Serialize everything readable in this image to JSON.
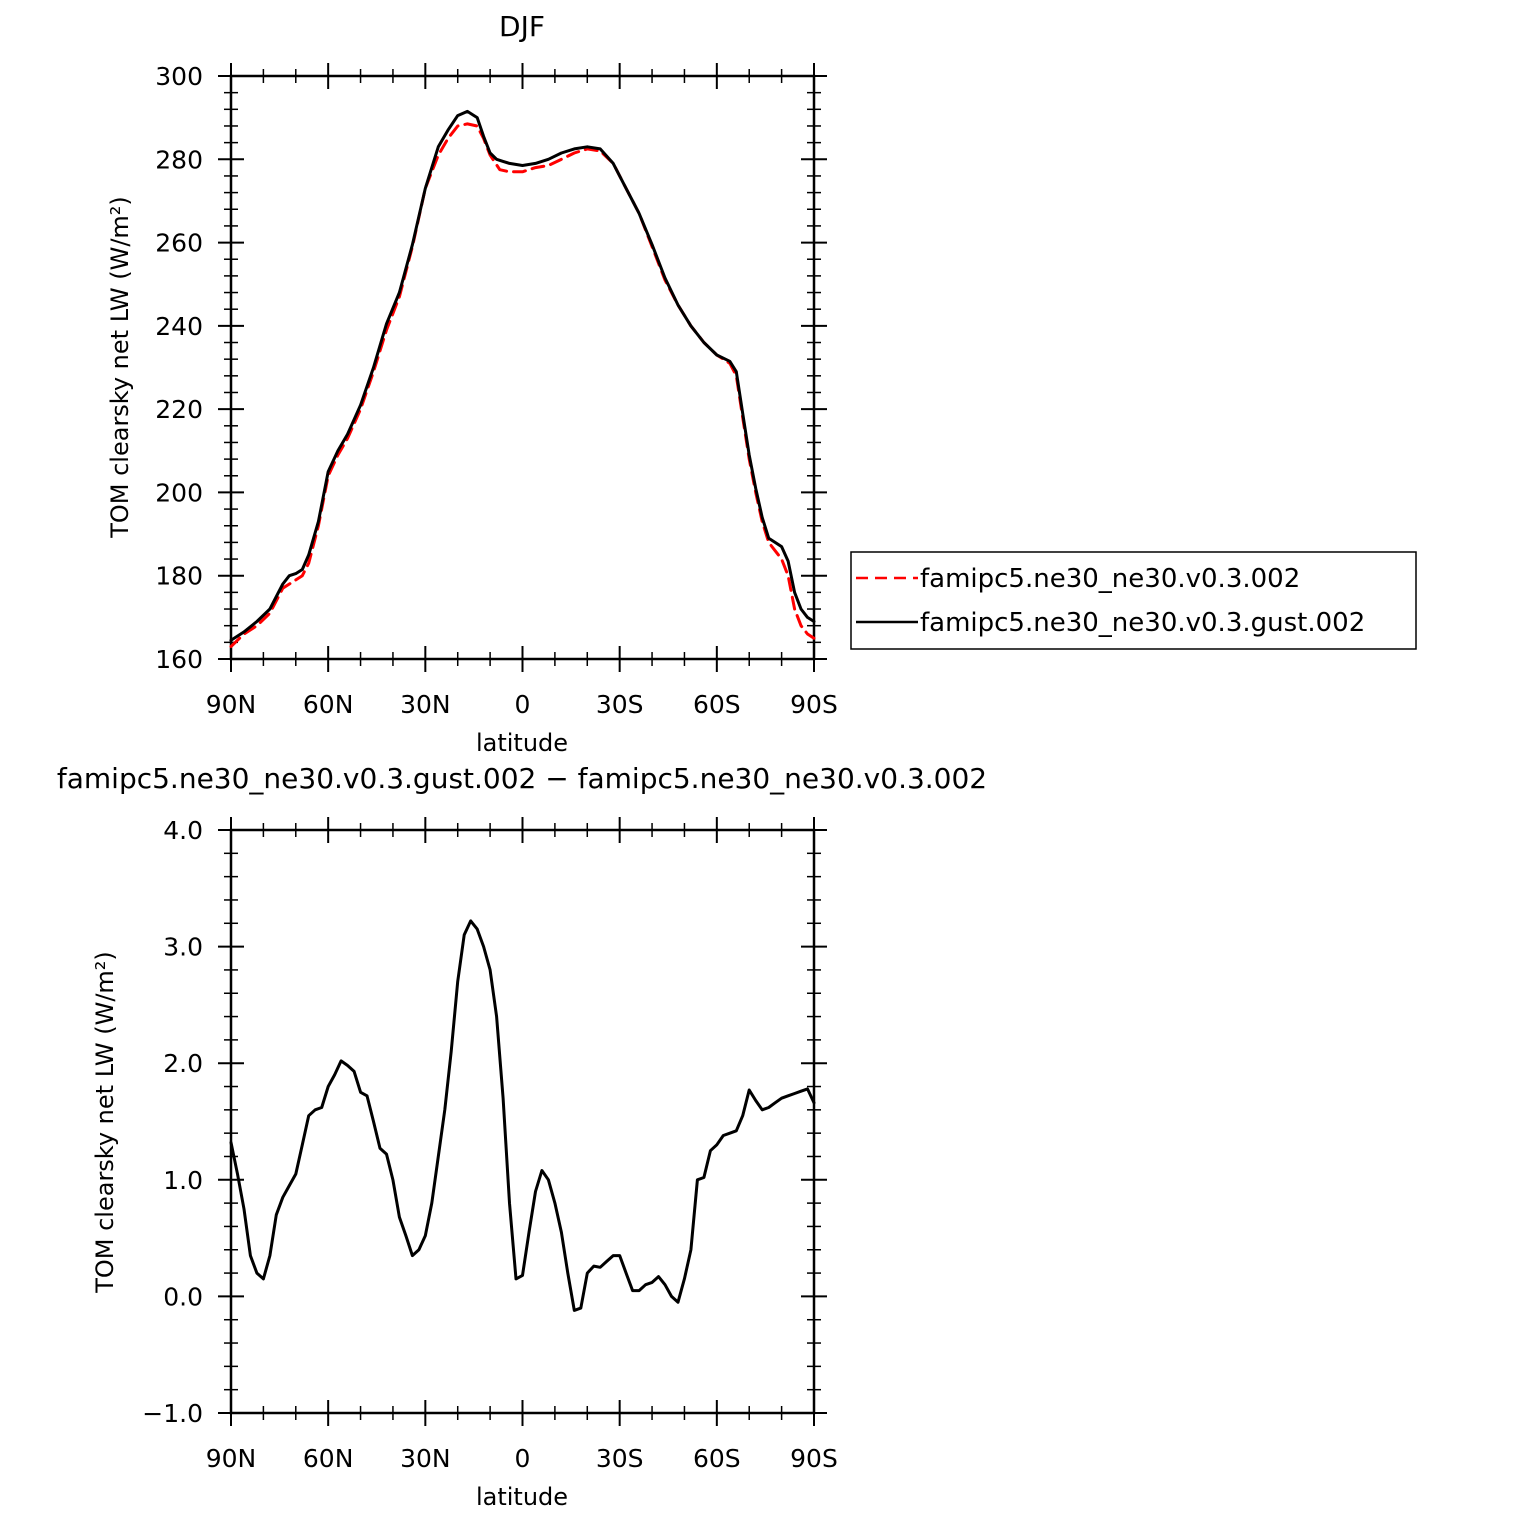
{
  "chart_data": [
    {
      "type": "line",
      "title": "DJF",
      "xlabel": "latitude",
      "ylabel": "TOM clearsky net LW (W/m²)",
      "x_tick_labels": [
        "90N",
        "60N",
        "30N",
        "0",
        "30S",
        "60S",
        "90S"
      ],
      "x_ticks": [
        -90,
        -60,
        -30,
        0,
        30,
        60,
        90
      ],
      "xlim": [
        -90,
        90
      ],
      "y_tick_labels": [
        "160",
        "180",
        "200",
        "220",
        "240",
        "260",
        "280",
        "300"
      ],
      "y_ticks": [
        160,
        180,
        200,
        220,
        240,
        260,
        280,
        300
      ],
      "ylim": [
        160,
        300
      ],
      "legend_position": "right",
      "series": [
        {
          "name": "famipc5.ne30_ne30.v0.3.002",
          "color": "#ff0000",
          "style": "dashed",
          "x": [
            -90,
            -86,
            -82,
            -78,
            -74,
            -70,
            -68,
            -66,
            -63,
            -60,
            -57,
            -54,
            -50,
            -46,
            -42,
            -38,
            -34,
            -30,
            -28,
            -26,
            -23,
            -20,
            -17,
            -14,
            -12,
            -10,
            -7,
            -4,
            0,
            4,
            8,
            12,
            16,
            20,
            24,
            28,
            32,
            36,
            40,
            44,
            48,
            52,
            56,
            60,
            64,
            66,
            68,
            70,
            72,
            74,
            76,
            78,
            80,
            82,
            84,
            86,
            88,
            90
          ],
          "y": [
            163,
            166,
            168,
            171,
            177,
            179,
            180,
            183,
            192,
            204,
            209,
            213,
            220,
            229,
            239,
            247,
            259,
            273,
            277,
            281,
            285,
            288,
            288.5,
            288,
            285,
            281,
            277.5,
            277,
            277,
            278,
            278.5,
            280,
            281.5,
            282.5,
            282,
            279,
            273,
            267,
            259,
            251,
            245,
            240,
            236,
            233,
            231,
            228,
            218,
            208,
            200,
            193,
            188,
            186,
            184,
            180,
            172,
            168,
            166,
            165
          ]
        },
        {
          "name": "famipc5.ne30_ne30.v0.3.gust.002",
          "color": "#000000",
          "style": "solid",
          "x": [
            -90,
            -86,
            -82,
            -78,
            -74,
            -72,
            -70,
            -68,
            -66,
            -63,
            -60,
            -57,
            -54,
            -50,
            -46,
            -42,
            -38,
            -34,
            -30,
            -28,
            -26,
            -23,
            -20,
            -17,
            -14,
            -12,
            -10,
            -8,
            -6,
            -4,
            0,
            4,
            8,
            12,
            16,
            20,
            24,
            28,
            32,
            36,
            40,
            44,
            48,
            52,
            56,
            60,
            64,
            66,
            68,
            70,
            72,
            74,
            76,
            78,
            80,
            82,
            84,
            86,
            88,
            90
          ],
          "y": [
            164.5,
            166.5,
            169,
            172,
            178,
            180,
            180.5,
            181.5,
            185,
            193,
            205,
            210,
            214,
            221,
            230,
            240.5,
            248,
            259.5,
            273,
            278,
            283,
            287,
            290.5,
            291.5,
            290,
            285.5,
            281.5,
            280,
            279.5,
            279,
            278.5,
            279,
            280,
            281.5,
            282.5,
            283,
            282.5,
            279,
            273,
            267,
            259.5,
            251.5,
            245,
            240,
            236,
            233,
            231.5,
            229,
            219,
            209,
            201,
            194,
            189,
            188,
            187,
            183.5,
            176,
            172,
            170,
            169
          ]
        }
      ]
    },
    {
      "type": "line",
      "title": "famipc5.ne30_ne30.v0.3.gust.002 − famipc5.ne30_ne30.v0.3.002",
      "xlabel": "latitude",
      "ylabel": "TOM clearsky net LW (W/m²)",
      "x_tick_labels": [
        "90N",
        "60N",
        "30N",
        "0",
        "30S",
        "60S",
        "90S"
      ],
      "x_ticks": [
        -90,
        -60,
        -30,
        0,
        30,
        60,
        90
      ],
      "xlim": [
        -90,
        90
      ],
      "y_tick_labels": [
        "−1.0",
        "0.0",
        "1.0",
        "2.0",
        "3.0",
        "4.0"
      ],
      "y_ticks": [
        -1,
        0,
        1,
        2,
        3,
        4
      ],
      "ylim": [
        -1,
        4
      ],
      "series": [
        {
          "color": "#000000",
          "style": "solid",
          "x": [
            -90,
            -88,
            -86,
            -84,
            -82,
            -80,
            -78,
            -76,
            -74,
            -72,
            -70,
            -68,
            -66,
            -64,
            -62,
            -60,
            -58,
            -56,
            -54,
            -52,
            -50,
            -48,
            -46,
            -44,
            -42,
            -40,
            -38,
            -36,
            -34,
            -32,
            -30,
            -28,
            -26,
            -24,
            -22,
            -20,
            -18,
            -16,
            -14,
            -12,
            -10,
            -8,
            -6,
            -4,
            -2,
            0,
            2,
            4,
            6,
            8,
            10,
            12,
            14,
            16,
            18,
            20,
            22,
            24,
            26,
            28,
            30,
            32,
            34,
            36,
            38,
            40,
            42,
            44,
            46,
            48,
            50,
            52,
            54,
            56,
            58,
            60,
            62,
            64,
            66,
            68,
            70,
            72,
            74,
            76,
            78,
            80,
            82,
            84,
            86,
            88,
            90
          ],
          "y": [
            1.32,
            1.05,
            0.75,
            0.35,
            0.2,
            0.15,
            0.35,
            0.7,
            0.85,
            0.95,
            1.05,
            1.3,
            1.55,
            1.6,
            1.62,
            1.8,
            1.9,
            2.02,
            1.98,
            1.93,
            1.75,
            1.72,
            1.5,
            1.27,
            1.22,
            1.0,
            0.68,
            0.52,
            0.35,
            0.4,
            0.52,
            0.8,
            1.2,
            1.6,
            2.1,
            2.7,
            3.1,
            3.22,
            3.15,
            3.0,
            2.8,
            2.4,
            1.7,
            0.8,
            0.15,
            0.18,
            0.55,
            0.9,
            1.08,
            1.0,
            0.8,
            0.55,
            0.2,
            -0.12,
            -0.1,
            0.2,
            0.26,
            0.25,
            0.3,
            0.35,
            0.35,
            0.2,
            0.05,
            0.05,
            0.1,
            0.12,
            0.17,
            0.1,
            0.0,
            -0.05,
            0.15,
            0.4,
            1.0,
            1.02,
            1.25,
            1.3,
            1.38,
            1.4,
            1.42,
            1.55,
            1.77,
            1.68,
            1.6,
            1.62,
            1.66,
            1.7,
            1.72,
            1.74,
            1.76,
            1.78,
            1.66
          ]
        }
      ]
    }
  ]
}
